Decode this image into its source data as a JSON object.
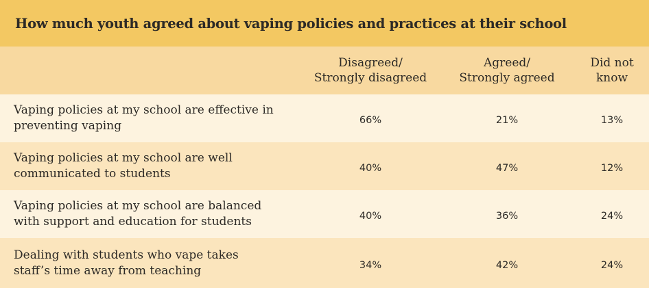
{
  "header": {
    "title": "How much youth agreed about vaping policies and practices at their school"
  },
  "table": {
    "columns": [
      [
        "Disagreed/",
        "Strongly disagreed"
      ],
      [
        "Agreed/",
        "Strongly agreed"
      ],
      [
        "Did not",
        "know"
      ]
    ],
    "rows": [
      {
        "label": [
          "Vaping policies at my school are effective in",
          "preventing vaping"
        ],
        "values": [
          "66%",
          "21%",
          "13%"
        ]
      },
      {
        "label": [
          "Vaping policies at my school are well",
          "communicated to students"
        ],
        "values": [
          "40%",
          "47%",
          "12%"
        ]
      },
      {
        "label": [
          "Vaping policies at my school are balanced",
          "with support and education for students"
        ],
        "values": [
          "40%",
          "36%",
          "24%"
        ]
      },
      {
        "label": [
          "Dealing with students who vape takes",
          "staff’s time away from teaching"
        ],
        "values": [
          "34%",
          "42%",
          "24%"
        ]
      }
    ]
  }
}
